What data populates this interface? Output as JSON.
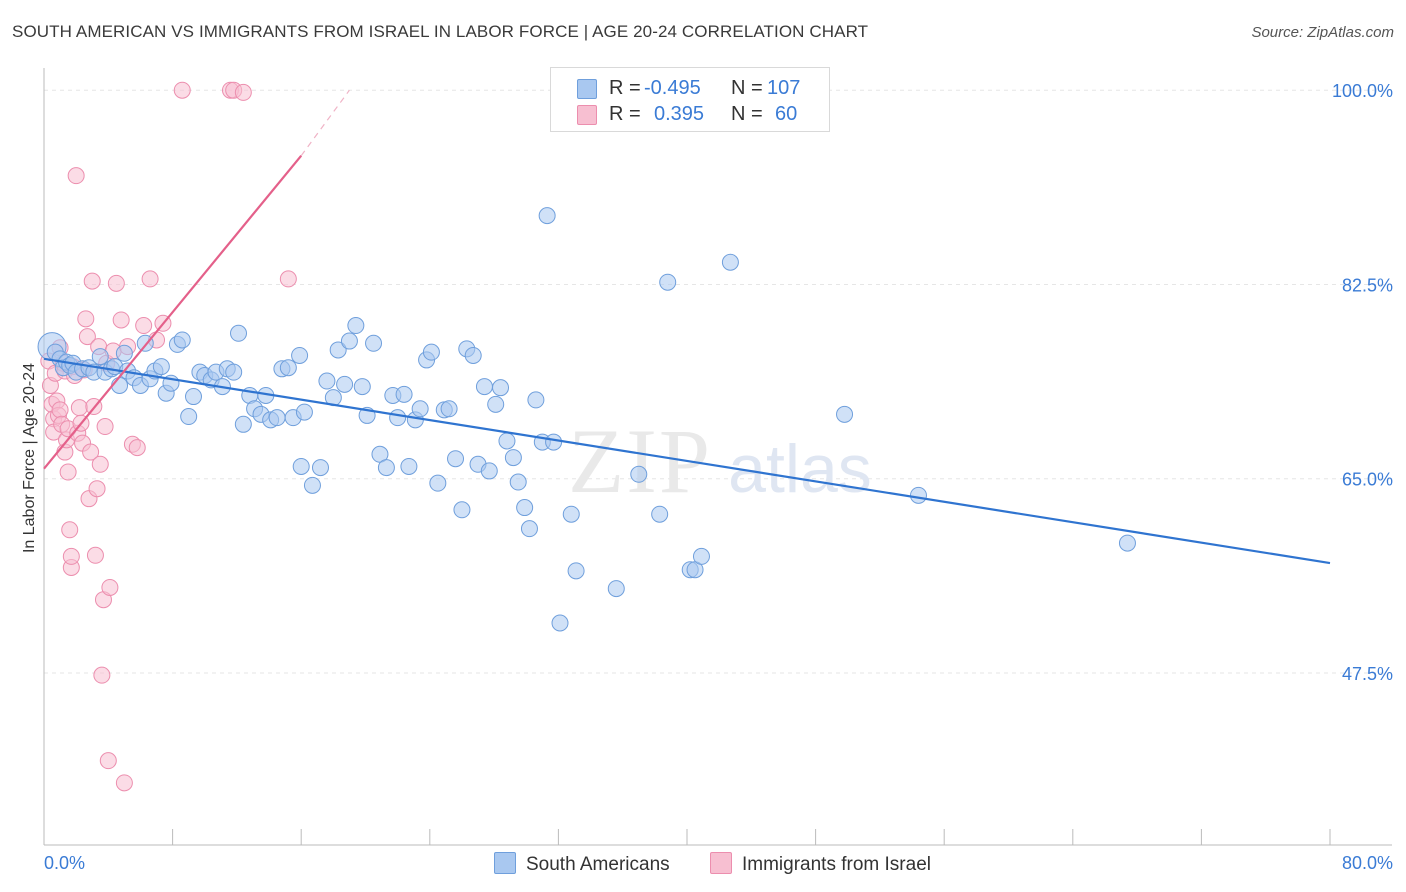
{
  "header": {
    "title": "SOUTH AMERICAN VS IMMIGRANTS FROM ISRAEL IN LABOR FORCE | AGE 20-24 CORRELATION CHART",
    "source": "Source: ZipAtlas.com"
  },
  "legend": {
    "rows": [
      {
        "r_label": "R =",
        "r_value": "-0.495",
        "n_label": "N =",
        "n_value": "107"
      },
      {
        "r_label": "R =",
        "r_value": "0.395",
        "n_label": "N =",
        "n_value": "60"
      }
    ]
  },
  "bottom_legend": [
    "South Americans",
    "Immigrants from Israel"
  ],
  "colors": {
    "blue_fill": "#a9c8f0",
    "blue_stroke": "#6f9fdc",
    "blue_line": "#2f74d0",
    "pink_fill": "#f7bfd1",
    "pink_stroke": "#ec8eae",
    "pink_line": "#e4608a",
    "tick_label": "#3a7bd5",
    "grid": "#e6e6e6"
  },
  "chart_data": {
    "type": "scatter",
    "title": "SOUTH AMERICAN VS IMMIGRANTS FROM ISRAEL IN LABOR FORCE | AGE 20-24 CORRELATION CHART",
    "xlabel": "",
    "ylabel": "In Labor Force | Age 20-24",
    "xlim": [
      0,
      80
    ],
    "ylim": [
      32,
      102
    ],
    "x_tick_labels": [
      "0.0%",
      "80.0%"
    ],
    "y_ticks": [
      47.5,
      65.0,
      82.5,
      100.0
    ],
    "y_tick_labels": [
      "47.5%",
      "65.0%",
      "82.5%",
      "100.0%"
    ],
    "grid": true,
    "watermark": "ZIPatlas",
    "series": [
      {
        "name": "South Americans",
        "color": "#6f9fdc",
        "trend": {
          "x": [
            0,
            80
          ],
          "y": [
            75.8,
            57.4
          ]
        },
        "points": [
          [
            0.5,
            76.9
          ],
          [
            0.7,
            76.4
          ],
          [
            1.0,
            75.8
          ],
          [
            1.2,
            75.0
          ],
          [
            1.4,
            75.5
          ],
          [
            1.6,
            75.2
          ],
          [
            1.8,
            75.4
          ],
          [
            2.0,
            74.6
          ],
          [
            2.4,
            74.9
          ],
          [
            2.8,
            75.0
          ],
          [
            3.1,
            74.6
          ],
          [
            3.5,
            76.0
          ],
          [
            3.8,
            74.6
          ],
          [
            4.2,
            74.9
          ],
          [
            4.4,
            75.1
          ],
          [
            4.7,
            73.4
          ],
          [
            5.0,
            76.3
          ],
          [
            5.2,
            74.7
          ],
          [
            5.6,
            74.1
          ],
          [
            6.0,
            73.4
          ],
          [
            6.3,
            77.2
          ],
          [
            6.6,
            74.0
          ],
          [
            6.9,
            74.7
          ],
          [
            7.3,
            75.1
          ],
          [
            7.6,
            72.7
          ],
          [
            7.9,
            73.6
          ],
          [
            8.3,
            77.1
          ],
          [
            8.6,
            77.5
          ],
          [
            9.0,
            70.6
          ],
          [
            9.3,
            72.4
          ],
          [
            9.7,
            74.6
          ],
          [
            10.0,
            74.3
          ],
          [
            10.4,
            73.9
          ],
          [
            10.7,
            74.6
          ],
          [
            11.1,
            73.3
          ],
          [
            11.4,
            74.9
          ],
          [
            11.8,
            74.6
          ],
          [
            12.1,
            78.1
          ],
          [
            12.4,
            69.9
          ],
          [
            12.8,
            72.5
          ],
          [
            13.1,
            71.3
          ],
          [
            13.5,
            70.8
          ],
          [
            13.8,
            72.5
          ],
          [
            14.1,
            70.3
          ],
          [
            14.5,
            70.5
          ],
          [
            14.8,
            74.9
          ],
          [
            15.2,
            75.0
          ],
          [
            15.5,
            70.5
          ],
          [
            15.9,
            76.1
          ],
          [
            16.2,
            71.0
          ],
          [
            16.7,
            64.4
          ],
          [
            16.0,
            66.1
          ],
          [
            17.2,
            66.0
          ],
          [
            17.6,
            73.8
          ],
          [
            18.0,
            72.3
          ],
          [
            18.3,
            76.6
          ],
          [
            18.7,
            73.5
          ],
          [
            19.0,
            77.4
          ],
          [
            19.4,
            78.8
          ],
          [
            19.8,
            73.3
          ],
          [
            20.1,
            70.7
          ],
          [
            20.5,
            77.2
          ],
          [
            20.9,
            67.2
          ],
          [
            21.3,
            66.0
          ],
          [
            21.7,
            72.5
          ],
          [
            22.0,
            70.5
          ],
          [
            22.4,
            72.6
          ],
          [
            22.7,
            66.1
          ],
          [
            23.1,
            70.3
          ],
          [
            23.4,
            71.3
          ],
          [
            23.8,
            75.7
          ],
          [
            24.1,
            76.4
          ],
          [
            24.5,
            64.6
          ],
          [
            24.9,
            71.2
          ],
          [
            25.2,
            71.3
          ],
          [
            25.6,
            66.8
          ],
          [
            26.0,
            62.2
          ],
          [
            26.3,
            76.7
          ],
          [
            26.7,
            76.1
          ],
          [
            27.0,
            66.3
          ],
          [
            27.4,
            73.3
          ],
          [
            27.7,
            65.7
          ],
          [
            28.1,
            71.7
          ],
          [
            28.4,
            73.2
          ],
          [
            28.8,
            68.4
          ],
          [
            29.2,
            66.9
          ],
          [
            29.5,
            64.7
          ],
          [
            29.9,
            62.4
          ],
          [
            30.2,
            60.5
          ],
          [
            30.6,
            72.1
          ],
          [
            31.0,
            68.3
          ],
          [
            31.3,
            88.7
          ],
          [
            31.7,
            68.3
          ],
          [
            32.1,
            52.0
          ],
          [
            32.8,
            61.8
          ],
          [
            33.1,
            56.7
          ],
          [
            35.6,
            55.1
          ],
          [
            37.0,
            65.4
          ],
          [
            38.3,
            61.8
          ],
          [
            38.8,
            82.7
          ],
          [
            40.2,
            56.8
          ],
          [
            40.5,
            56.8
          ],
          [
            40.9,
            58.0
          ],
          [
            42.7,
            84.5
          ],
          [
            49.8,
            70.8
          ],
          [
            54.4,
            63.5
          ],
          [
            67.4,
            59.2
          ]
        ]
      },
      {
        "name": "Immigrants from Israel",
        "color": "#ec8eae",
        "trend": {
          "x": [
            0,
            16.0
          ],
          "y": [
            65.9,
            94.1
          ]
        },
        "trend_dashed": {
          "x": [
            16.0,
            19.0
          ],
          "y": [
            94.1,
            100.0
          ]
        },
        "points": [
          [
            0.3,
            75.6
          ],
          [
            0.4,
            73.4
          ],
          [
            0.5,
            71.7
          ],
          [
            0.6,
            70.4
          ],
          [
            0.6,
            69.2
          ],
          [
            0.7,
            74.5
          ],
          [
            0.8,
            72.0
          ],
          [
            0.9,
            70.7
          ],
          [
            1.0,
            76.8
          ],
          [
            1.0,
            71.2
          ],
          [
            1.1,
            69.9
          ],
          [
            1.2,
            75.4
          ],
          [
            1.3,
            74.7
          ],
          [
            1.3,
            67.4
          ],
          [
            1.4,
            68.5
          ],
          [
            1.5,
            69.5
          ],
          [
            1.5,
            65.6
          ],
          [
            1.6,
            60.4
          ],
          [
            1.7,
            57.0
          ],
          [
            1.7,
            58.0
          ],
          [
            1.8,
            75.1
          ],
          [
            1.9,
            74.3
          ],
          [
            2.0,
            92.3
          ],
          [
            2.1,
            69.1
          ],
          [
            2.2,
            71.4
          ],
          [
            2.3,
            70.0
          ],
          [
            2.4,
            68.2
          ],
          [
            2.5,
            74.8
          ],
          [
            2.6,
            79.4
          ],
          [
            2.7,
            77.8
          ],
          [
            2.8,
            63.2
          ],
          [
            2.9,
            67.4
          ],
          [
            3.0,
            82.8
          ],
          [
            3.1,
            71.5
          ],
          [
            3.2,
            58.1
          ],
          [
            3.3,
            64.1
          ],
          [
            3.4,
            76.9
          ],
          [
            3.5,
            66.3
          ],
          [
            3.6,
            47.3
          ],
          [
            3.7,
            54.1
          ],
          [
            3.8,
            69.7
          ],
          [
            3.9,
            75.4
          ],
          [
            4.0,
            39.6
          ],
          [
            4.1,
            55.2
          ],
          [
            4.3,
            76.5
          ],
          [
            4.5,
            82.6
          ],
          [
            4.8,
            79.3
          ],
          [
            5.0,
            37.6
          ],
          [
            5.2,
            76.9
          ],
          [
            5.5,
            68.1
          ],
          [
            5.8,
            67.8
          ],
          [
            6.2,
            78.8
          ],
          [
            6.6,
            83.0
          ],
          [
            7.0,
            77.5
          ],
          [
            7.4,
            79.0
          ],
          [
            8.6,
            100.0
          ],
          [
            11.6,
            100.0
          ],
          [
            11.8,
            100.0
          ],
          [
            12.4,
            99.8
          ],
          [
            15.2,
            83.0
          ]
        ]
      }
    ]
  }
}
